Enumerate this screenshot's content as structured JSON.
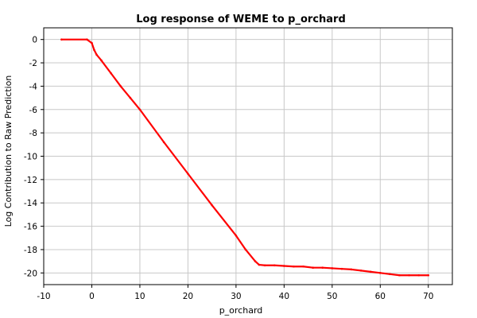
{
  "chart_data": {
    "type": "line",
    "title": "Log response of WEME to p_orchard",
    "xlabel": "p_orchard",
    "ylabel": "Log Contribution to Raw Prediction",
    "xlim": [
      -10,
      75
    ],
    "ylim": [
      -21,
      1
    ],
    "x_ticks": [
      -10,
      0,
      10,
      20,
      30,
      40,
      50,
      60,
      70
    ],
    "y_ticks": [
      0,
      -2,
      -4,
      -6,
      -8,
      -10,
      -12,
      -14,
      -16,
      -18,
      -20
    ],
    "grid": true,
    "legend": "none",
    "series": [
      {
        "color": "#ff0000",
        "x": [
          -6.3,
          -1,
          0,
          0.5,
          1,
          2,
          4,
          6,
          8,
          10,
          15,
          20,
          25,
          30,
          32,
          34,
          34.8,
          36,
          38,
          40,
          42,
          44,
          46,
          48,
          50,
          52,
          54,
          56,
          58,
          60,
          62,
          64,
          66,
          68,
          70
        ],
        "y": [
          0,
          0,
          -0.3,
          -0.9,
          -1.3,
          -1.8,
          -2.9,
          -4.0,
          -5.0,
          -6.0,
          -8.8,
          -11.5,
          -14.2,
          -16.8,
          -18.0,
          -19.0,
          -19.3,
          -19.35,
          -19.35,
          -19.4,
          -19.45,
          -19.45,
          -19.55,
          -19.55,
          -19.6,
          -19.65,
          -19.7,
          -19.8,
          -19.9,
          -20.0,
          -20.1,
          -20.2,
          -20.2,
          -20.2,
          -20.2
        ]
      }
    ]
  }
}
